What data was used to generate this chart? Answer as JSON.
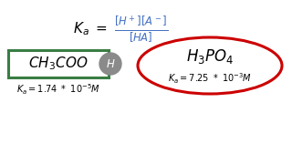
{
  "bg_color": "#ffffff",
  "green_box_color": "#3a7d44",
  "red_ellipse_color": "#cc0000",
  "H_ball_color": "#8a8a8a",
  "blue_color": "#4472c4",
  "black": "#000000",
  "white": "#ffffff",
  "figw": 3.2,
  "figh": 1.8,
  "dpi": 100
}
